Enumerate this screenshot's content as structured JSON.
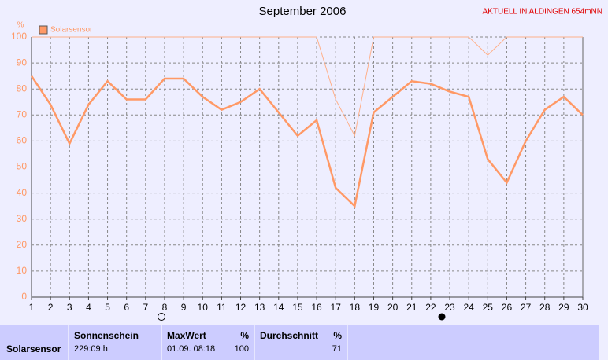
{
  "chart_data": {
    "type": "line",
    "title": "September 2006",
    "annotation": "AKTUELL IN ALDINGEN 654mNN",
    "y_label": "%",
    "x": [
      1,
      2,
      3,
      4,
      5,
      6,
      7,
      8,
      9,
      10,
      11,
      12,
      13,
      14,
      15,
      16,
      17,
      18,
      19,
      20,
      21,
      22,
      23,
      24,
      25,
      26,
      27,
      28,
      29,
      30
    ],
    "series": [
      {
        "name": "Solarsensor",
        "color": "#ff9966",
        "values": [
          85,
          74,
          59,
          74,
          83,
          76,
          76,
          84,
          84,
          77,
          72,
          75,
          80,
          71,
          62,
          68,
          42,
          35,
          71,
          77,
          83,
          82,
          79,
          77,
          53,
          44,
          60,
          72,
          77,
          70
        ]
      },
      {
        "color": "#ffb08a",
        "values": [
          100,
          100,
          100,
          100,
          100,
          100,
          100,
          100,
          100,
          100,
          100,
          100,
          100,
          100,
          100,
          100,
          76,
          62,
          100,
          100,
          100,
          100,
          100,
          100,
          93,
          100,
          100,
          100,
          100,
          100
        ]
      }
    ],
    "xlim": [
      1,
      30
    ],
    "xticks": [
      1,
      2,
      3,
      4,
      5,
      6,
      7,
      8,
      9,
      10,
      11,
      12,
      13,
      14,
      15,
      16,
      17,
      18,
      19,
      20,
      21,
      22,
      23,
      24,
      25,
      26,
      27,
      28,
      29,
      30
    ],
    "ylim": [
      0,
      100
    ],
    "yticks": [
      0,
      10,
      20,
      30,
      40,
      50,
      60,
      70,
      80,
      90,
      100
    ],
    "grid": true,
    "legend": "top-left"
  },
  "stats": {
    "row_label": "Solarsensor",
    "sunshine": {
      "header": "Sonnenschein",
      "value": "229:09 h"
    },
    "max": {
      "header": "MaxWert",
      "unit": "%",
      "time": "01.09.  08:18",
      "value": 100
    },
    "avg": {
      "header": "Durchschnitt",
      "unit": "%",
      "value": 71
    }
  }
}
